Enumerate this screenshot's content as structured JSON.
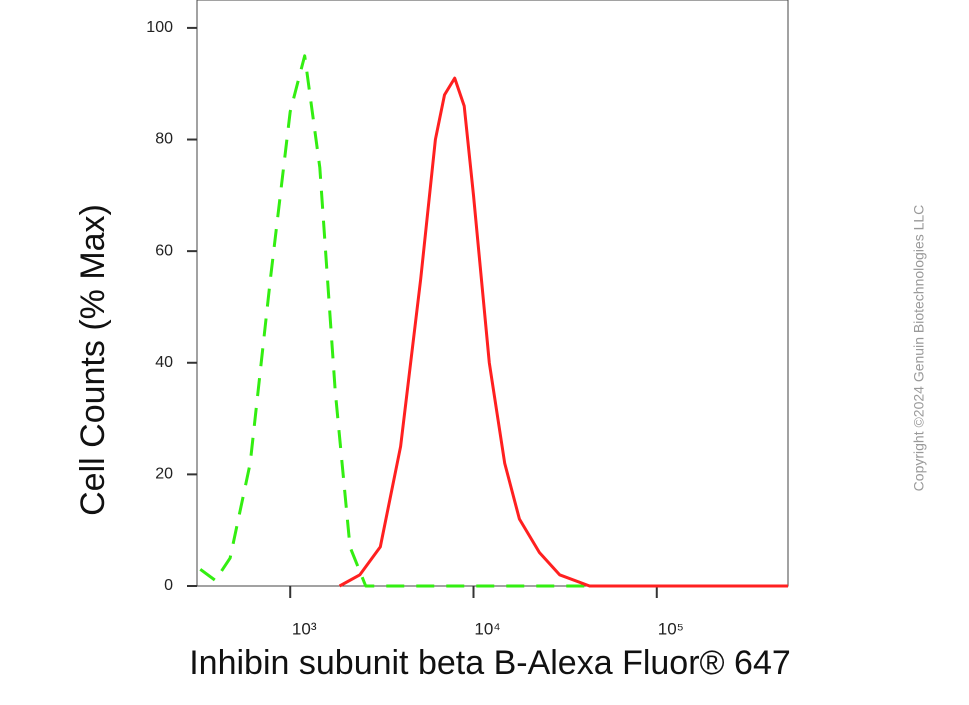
{
  "chart_data": {
    "type": "line",
    "xlabel": "Inhibin subunit beta B-Alexa Fluor® 647",
    "ylabel": "Cell Counts (% Max)",
    "copyright": "Copyright ©2024 Genuin Biotechnologies LLC",
    "xscale": "log",
    "xlim": [
      310,
      520000
    ],
    "ylim": [
      0,
      105
    ],
    "xticks": [
      {
        "value": 1000,
        "label": "10³"
      },
      {
        "value": 10000,
        "label": "10⁴"
      },
      {
        "value": 100000,
        "label": "10⁵"
      }
    ],
    "yticks": [
      0,
      20,
      40,
      60,
      80,
      100
    ],
    "series": [
      {
        "color": "#33ee11",
        "line_style": "dashed",
        "x": [
          323,
          390,
          470,
          605,
          780,
          1000,
          1200,
          1450,
          1760,
          2120,
          2580,
          10000,
          100000,
          520000
        ],
        "values": [
          3,
          1,
          5,
          22,
          55,
          85,
          95,
          75,
          35,
          7,
          0,
          0,
          0,
          0
        ]
      },
      {
        "color": "#ff2020",
        "line_style": "solid",
        "x": [
          1860,
          2400,
          3100,
          4000,
          5150,
          6200,
          6950,
          7900,
          8900,
          10000,
          12200,
          14800,
          17800,
          22900,
          29500,
          43000,
          171000,
          520000
        ],
        "values": [
          0,
          2,
          7,
          25,
          55,
          80,
          88,
          91,
          86,
          70,
          40,
          22,
          12,
          6,
          2,
          0,
          0,
          0
        ]
      }
    ]
  }
}
